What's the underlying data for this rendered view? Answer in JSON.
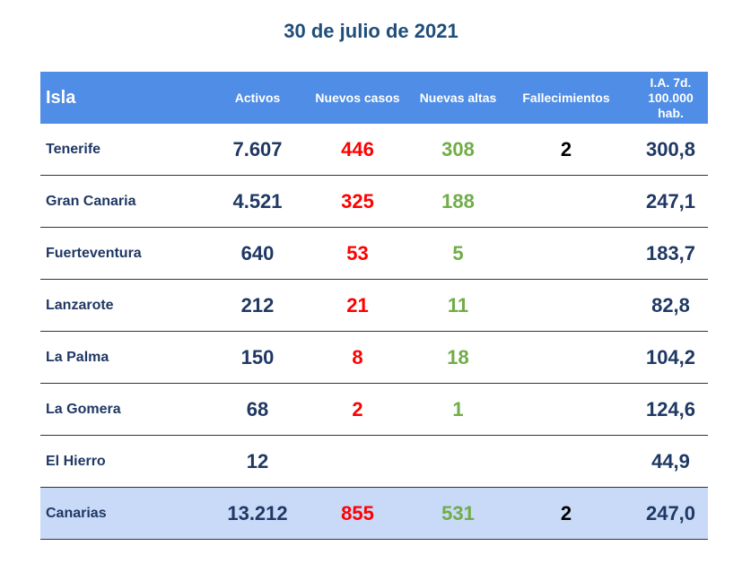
{
  "title": "30 de julio de 2021",
  "headers": {
    "isla": "Isla",
    "activos": "Activos",
    "nuevos": "Nuevos casos",
    "altas": "Nuevas altas",
    "fallecimientos": "Fallecimientos",
    "ia": "I.A. 7d. 100.000 hab."
  },
  "rows": [
    {
      "isla": "Tenerife",
      "activos": "7.607",
      "nuevos": "446",
      "altas": "308",
      "fallecimientos": "2",
      "ia": "300,8"
    },
    {
      "isla": "Gran Canaria",
      "activos": "4.521",
      "nuevos": "325",
      "altas": "188",
      "fallecimientos": "",
      "ia": "247,1"
    },
    {
      "isla": "Fuerteventura",
      "activos": "640",
      "nuevos": "53",
      "altas": "5",
      "fallecimientos": "",
      "ia": "183,7"
    },
    {
      "isla": "Lanzarote",
      "activos": "212",
      "nuevos": "21",
      "altas": "11",
      "fallecimientos": "",
      "ia": "82,8"
    },
    {
      "isla": "La Palma",
      "activos": "150",
      "nuevos": "8",
      "altas": "18",
      "fallecimientos": "",
      "ia": "104,2"
    },
    {
      "isla": "La Gomera",
      "activos": "68",
      "nuevos": "2",
      "altas": "1",
      "fallecimientos": "",
      "ia": "124,6"
    },
    {
      "isla": "El Hierro",
      "activos": "12",
      "nuevos": "",
      "altas": "",
      "fallecimientos": "",
      "ia": "44,9"
    }
  ],
  "total": {
    "isla": "Canarias",
    "activos": "13.212",
    "nuevos": "855",
    "altas": "531",
    "fallecimientos": "2",
    "ia": "247,0"
  },
  "colors": {
    "header_bg": "#4f8de6",
    "title": "#1f4e79",
    "nuevos": "#ff0000",
    "altas": "#70ad47",
    "total_bg": "#c9daf8"
  }
}
